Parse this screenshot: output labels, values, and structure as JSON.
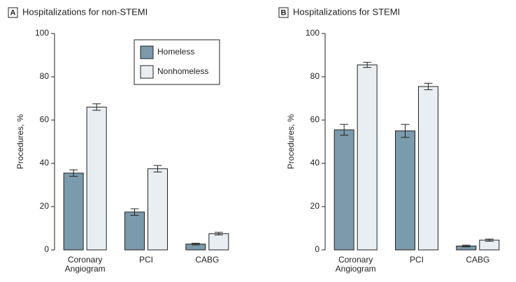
{
  "chart_data": [
    {
      "type": "bar",
      "panel": "A",
      "title": "Hospitalizations for non-STEMI",
      "y_label": "Procedures, %",
      "categories": [
        "Coronary Angiogram",
        "PCI",
        "CABG"
      ],
      "series": [
        {
          "name": "Homeless",
          "color": "#7b9aab",
          "values": [
            35.5,
            17.5,
            2.7
          ],
          "errors": [
            1.5,
            1.5,
            0.4
          ]
        },
        {
          "name": "Nonhomeless",
          "color": "#e8eef2",
          "values": [
            66,
            37.5,
            7.5
          ],
          "errors": [
            1.5,
            1.5,
            0.6
          ]
        }
      ],
      "ylim": [
        0,
        100
      ],
      "yticks": [
        0,
        20,
        40,
        60,
        80,
        100
      ],
      "legend": "upper right"
    },
    {
      "type": "bar",
      "panel": "B",
      "title": "Hospitalizations for STEMI",
      "y_label": "Procedures, %",
      "categories": [
        "Coronary Angiogram",
        "PCI",
        "CABG"
      ],
      "series": [
        {
          "color": "#7b9aab",
          "values": [
            55.5,
            55,
            1.8
          ],
          "errors": [
            2.5,
            3,
            0.4
          ]
        },
        {
          "color": "#e8eef2",
          "values": [
            85.5,
            75.5,
            4.5
          ],
          "errors": [
            1.2,
            1.5,
            0.5
          ]
        }
      ],
      "ylim": [
        0,
        100
      ],
      "yticks": [
        0,
        20,
        40,
        60,
        80,
        100
      ],
      "legend": "none"
    }
  ]
}
